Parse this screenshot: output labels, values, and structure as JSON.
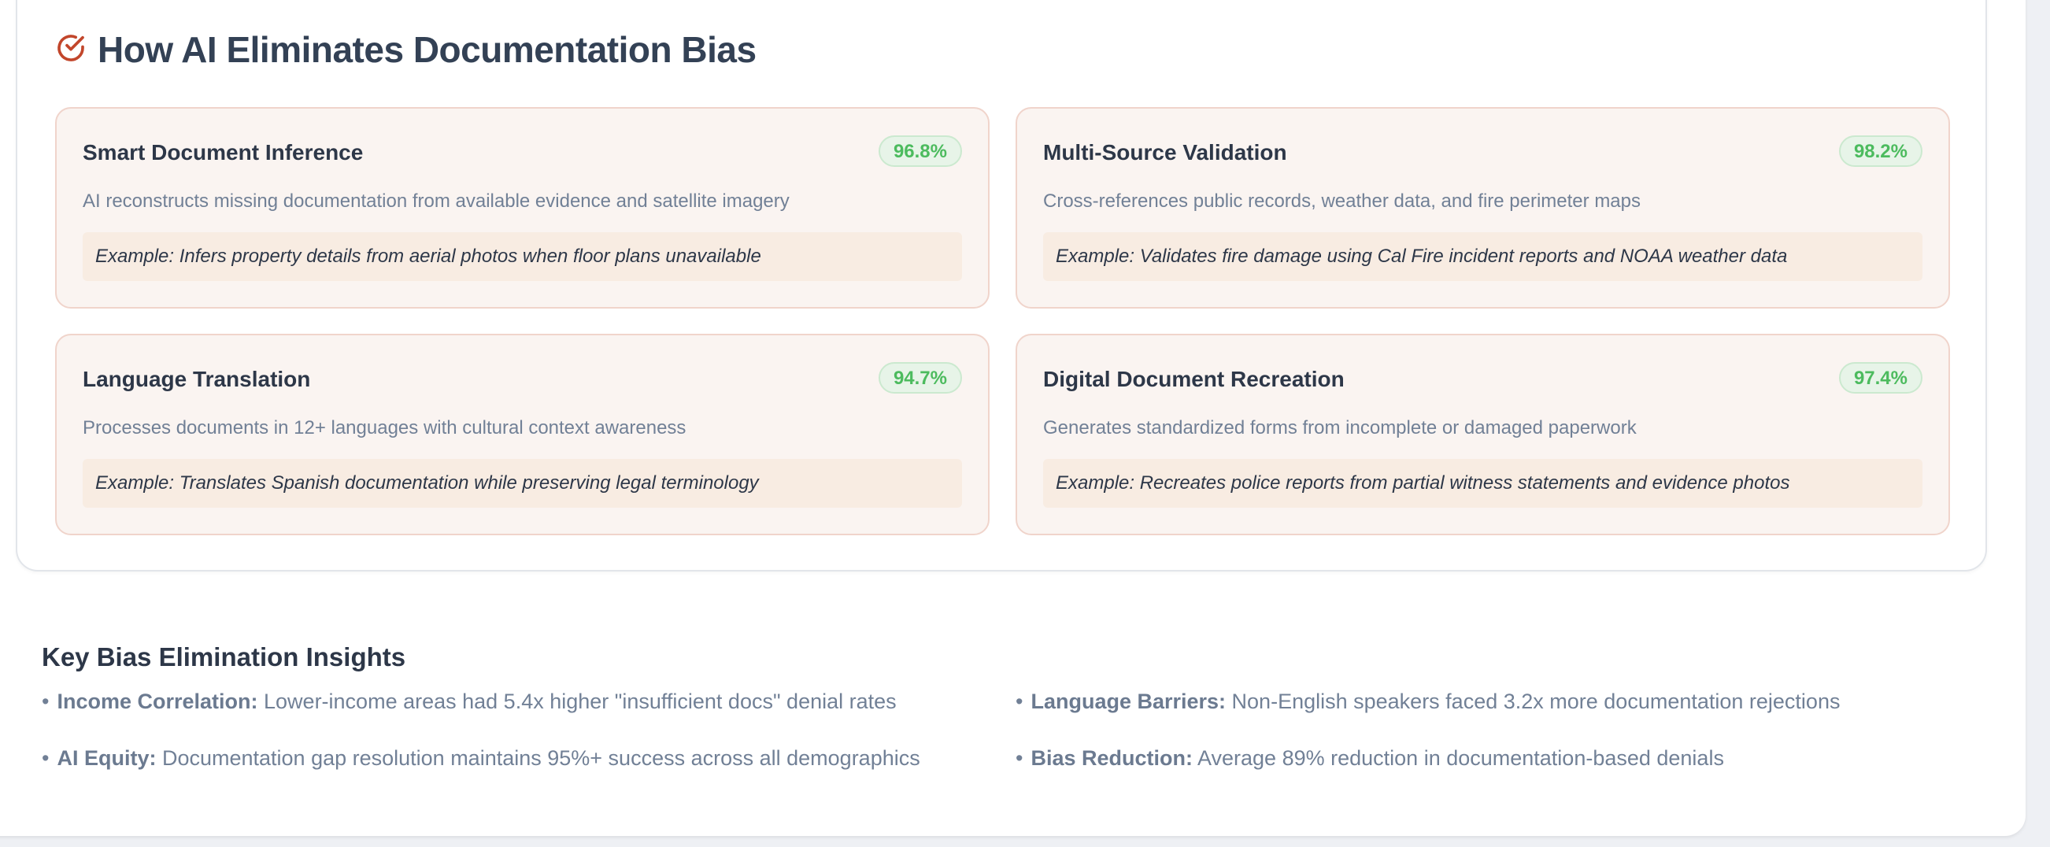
{
  "section": {
    "title": "How AI Eliminates Documentation Bias",
    "title_icon": "check-circle-icon",
    "accent_color": "#c2462b",
    "cards": [
      {
        "title": "Smart Document Inference",
        "badge": "96.8%",
        "description": "AI reconstructs missing documentation from available evidence and satellite imagery",
        "example": "Example: Infers property details from aerial photos when floor plans unavailable"
      },
      {
        "title": "Multi-Source Validation",
        "badge": "98.2%",
        "description": "Cross-references public records, weather data, and fire perimeter maps",
        "example": "Example: Validates fire damage using Cal Fire incident reports and NOAA weather data"
      },
      {
        "title": "Language Translation",
        "badge": "94.7%",
        "description": "Processes documents in 12+ languages with cultural context awareness",
        "example": "Example: Translates Spanish documentation while preserving legal terminology"
      },
      {
        "title": "Digital Document Recreation",
        "badge": "97.4%",
        "description": "Generates standardized forms from incomplete or damaged paperwork",
        "example": "Example: Recreates police reports from partial witness statements and evidence photos"
      }
    ]
  },
  "insights": {
    "title": "Key Bias Elimination Insights",
    "items": [
      {
        "label": "Income Correlation:",
        "text": "Lower-income areas had 5.4x higher \"insufficient docs\" denial rates"
      },
      {
        "label": "Language Barriers:",
        "text": "Non-English speakers faced 3.2x more documentation rejections"
      },
      {
        "label": "AI Equity:",
        "text": "Documentation gap resolution maintains 95%+ success across all demographics"
      },
      {
        "label": "Bias Reduction:",
        "text": "Average 89% reduction in documentation-based denials"
      }
    ]
  }
}
